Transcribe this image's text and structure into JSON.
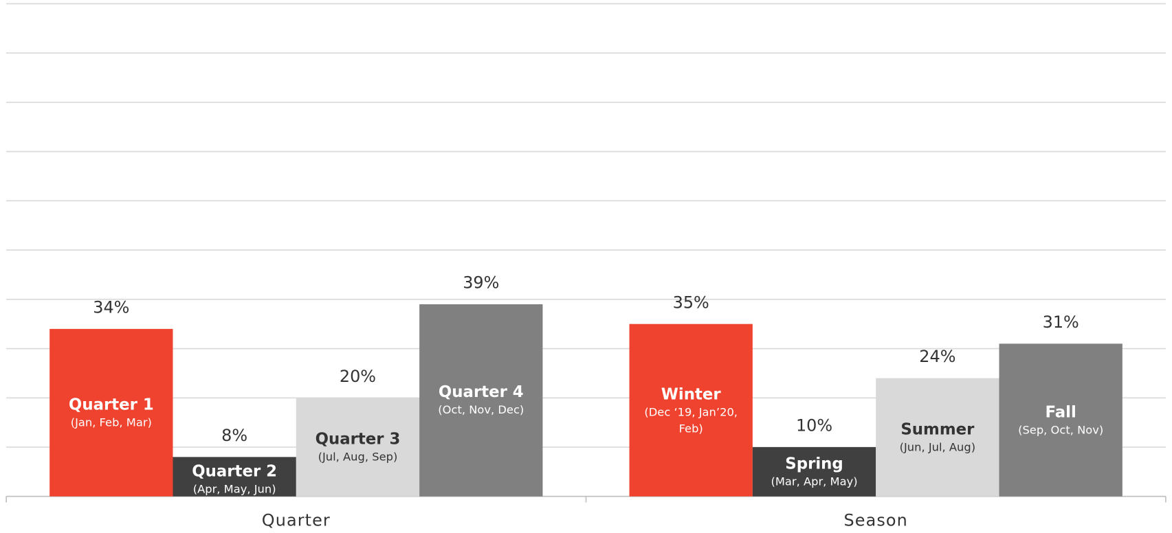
{
  "chart_data": {
    "type": "grouped-bar",
    "ylim": [
      0,
      100
    ],
    "yticks": [
      0,
      10,
      20,
      30,
      40,
      50,
      60,
      70,
      80,
      90,
      100
    ],
    "grid": true,
    "groups": [
      {
        "name": "Quarter",
        "categories": [
          "Quarter 1",
          "Quarter 2",
          "Quarter 3",
          "Quarter 4"
        ],
        "sublabels": [
          "(Jan, Feb, Mar)",
          "(Apr, May, Jun)",
          "(Jul, Aug, Sep)",
          "(Oct, Nov, Dec)"
        ],
        "values": [
          34,
          8,
          20,
          39
        ],
        "value_labels": [
          "34%",
          "8%",
          "20%",
          "39%"
        ],
        "colors": [
          "#ef432f",
          "#404040",
          "#d9d9d9",
          "#808080"
        ],
        "label_colors": [
          "#ffffff",
          "#ffffff",
          "#333333",
          "#ffffff"
        ]
      },
      {
        "name": "Season",
        "categories": [
          "Winter",
          "Spring",
          "Summer",
          "Fall"
        ],
        "sublabels": [
          "(Dec ‘19, Jan’20, Feb)",
          "(Mar, Apr, May)",
          "(Jun, Jul, Aug)",
          "(Sep, Oct, Nov)"
        ],
        "values": [
          35,
          10,
          24,
          31
        ],
        "value_labels": [
          "35%",
          "10%",
          "24%",
          "31%"
        ],
        "colors": [
          "#ef432f",
          "#404040",
          "#d9d9d9",
          "#808080"
        ],
        "label_colors": [
          "#ffffff",
          "#ffffff",
          "#333333",
          "#ffffff"
        ]
      }
    ]
  }
}
